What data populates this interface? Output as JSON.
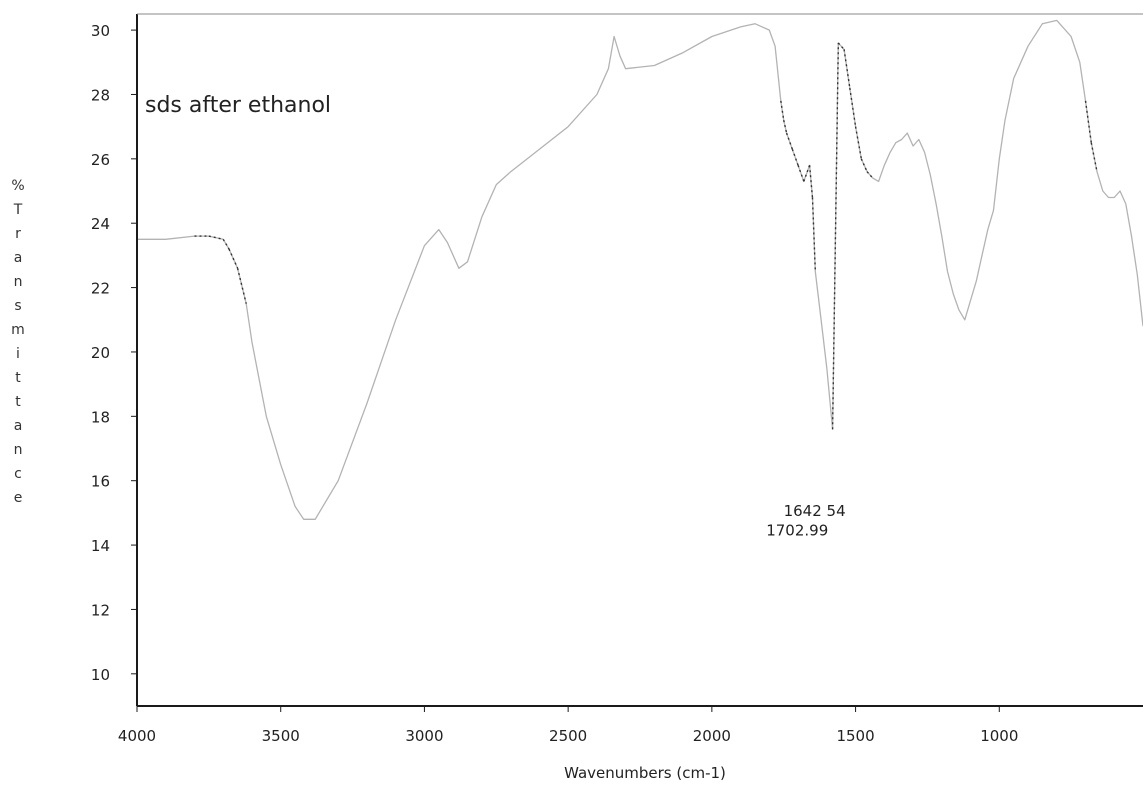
{
  "chart_data": {
    "type": "line",
    "title": "sds after ethanol",
    "xlabel": "Wavenumbers (cm-1)",
    "ylabel": "% Transmittance",
    "xlim": [
      4000,
      500
    ],
    "ylim": [
      9,
      30.5
    ],
    "x_ticks": [
      4000,
      3500,
      3000,
      2500,
      2000,
      1500,
      1000
    ],
    "y_ticks": [
      10,
      12,
      14,
      16,
      18,
      20,
      22,
      24,
      26,
      28,
      30
    ],
    "grid": false,
    "peak_labels": [
      {
        "text": "1702.99",
        "x": 1702.99,
        "y": 14.3
      },
      {
        "text": "1642 54",
        "x": 1642.54,
        "y": 14.9
      }
    ],
    "series": [
      {
        "x": [
          4000,
          3900,
          3800,
          3750,
          3700,
          3680,
          3650,
          3620,
          3600,
          3550,
          3500,
          3450,
          3420,
          3380,
          3300,
          3200,
          3100,
          3000,
          2950,
          2920,
          2880,
          2850,
          2800,
          2750,
          2700,
          2600,
          2500,
          2400,
          2360,
          2340,
          2320,
          2300,
          2200,
          2100,
          2000,
          1900,
          1850,
          1800,
          1780,
          1760,
          1750,
          1740,
          1720,
          1700,
          1680,
          1660,
          1650,
          1640,
          1620,
          1600,
          1580,
          1560,
          1540,
          1520,
          1500,
          1480,
          1460,
          1440,
          1420,
          1400,
          1380,
          1360,
          1340,
          1320,
          1300,
          1280,
          1260,
          1240,
          1220,
          1200,
          1180,
          1160,
          1140,
          1120,
          1100,
          1080,
          1060,
          1040,
          1020,
          1000,
          980,
          950,
          900,
          850,
          800,
          750,
          720,
          700,
          680,
          660,
          640,
          620,
          600,
          580,
          560,
          540,
          520,
          500
        ],
        "y": [
          23.5,
          23.5,
          23.6,
          23.6,
          23.5,
          23.2,
          22.6,
          21.5,
          20.3,
          18.0,
          16.5,
          15.2,
          14.8,
          14.8,
          16.0,
          18.4,
          21.0,
          23.3,
          23.8,
          23.4,
          22.6,
          22.8,
          24.2,
          25.2,
          25.6,
          26.3,
          27.0,
          28.0,
          28.8,
          29.8,
          29.2,
          28.8,
          28.9,
          29.3,
          29.8,
          30.1,
          30.2,
          30.0,
          29.5,
          27.8,
          27.2,
          26.8,
          26.3,
          25.8,
          25.3,
          25.8,
          24.8,
          22.5,
          21.0,
          19.5,
          17.6,
          29.6,
          29.4,
          28.2,
          27.0,
          26.0,
          25.6,
          25.4,
          25.3,
          25.8,
          26.2,
          26.5,
          26.6,
          26.8,
          26.4,
          26.6,
          26.2,
          25.5,
          24.6,
          23.6,
          22.5,
          21.8,
          21.3,
          21.0,
          21.6,
          22.2,
          23.0,
          23.8,
          24.4,
          26.0,
          27.2,
          28.5,
          29.5,
          30.2,
          30.3,
          29.8,
          29.0,
          27.8,
          26.5,
          25.6,
          25.0,
          24.8,
          24.8,
          25.0,
          24.6,
          23.6,
          22.4,
          20.8
        ]
      }
    ]
  },
  "colors": {
    "axis": "#1a1a1a",
    "trace": "#b3b3b3",
    "trace_dark": "#333333",
    "text": "#222222"
  }
}
